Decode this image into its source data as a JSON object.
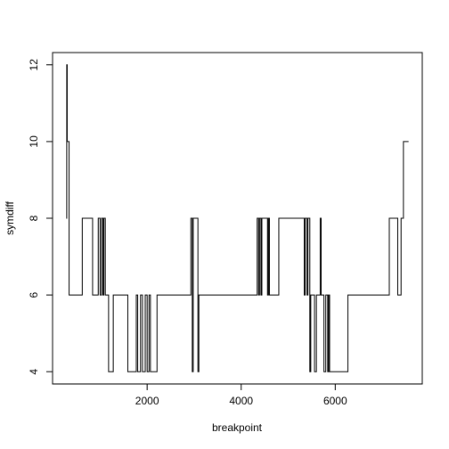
{
  "chart_data": {
    "type": "line",
    "drawstyle": "steps-post",
    "x_label": "breakpoint",
    "y_label": "symdiff",
    "xlim": [
      -11,
      7851
    ],
    "ylim": [
      3.68,
      12.32
    ],
    "xticks": [
      2000,
      4000,
      6000
    ],
    "yticks": [
      4,
      6,
      8,
      10,
      12
    ],
    "grid": false,
    "series": [
      {
        "color": "#000000",
        "x": [
          280,
          290,
          300,
          340,
          620,
          840,
          960,
          1000,
          1030,
          1060,
          1080,
          1110,
          1180,
          1280,
          1590,
          1770,
          1800,
          1860,
          1900,
          1960,
          2000,
          2040,
          2070,
          2210,
          2930,
          2960,
          2980,
          3080,
          3100,
          4340,
          4370,
          4390,
          4420,
          4440,
          4560,
          4580,
          4600,
          4800,
          5340,
          5360,
          5400,
          5420,
          5460,
          5480,
          5560,
          5600,
          5680,
          5700,
          5760,
          5800,
          5840,
          5860,
          5880,
          6270,
          7150,
          7330,
          7400,
          7450,
          7560
        ],
        "values": [
          8,
          12,
          10,
          6,
          8,
          6,
          8,
          6,
          8,
          6,
          8,
          6,
          4,
          6,
          4,
          6,
          4,
          6,
          4,
          6,
          4,
          6,
          4,
          6,
          8,
          4,
          8,
          4,
          6,
          8,
          6,
          8,
          6,
          8,
          6,
          8,
          6,
          8,
          6,
          8,
          6,
          8,
          4,
          6,
          4,
          6,
          8,
          6,
          4,
          6,
          4,
          6,
          4,
          6,
          8,
          6,
          8,
          10,
          10
        ]
      }
    ]
  }
}
